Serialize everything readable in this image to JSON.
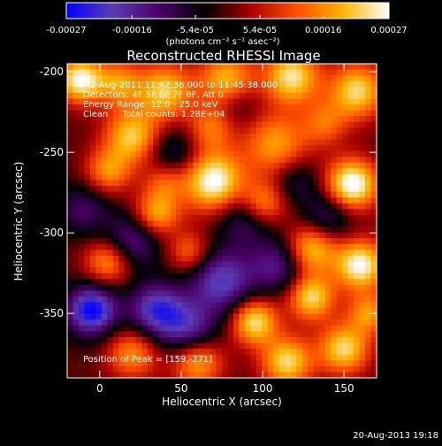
{
  "chart_data": {
    "type": "heatmap",
    "title": "Reconstructed RHESSI Image",
    "xlabel": "Heliocentric X (arcsec)",
    "ylabel": "Heliocentric Y (arcsec)",
    "xlim": [
      -20,
      170
    ],
    "ylim": [
      -390,
      -195
    ],
    "xticks": [
      0,
      50,
      100,
      150
    ],
    "yticks": [
      -200,
      -250,
      -300,
      -350
    ],
    "colorbar": {
      "min": -0.00027,
      "max": 0.00027,
      "tick_values": [
        -0.00027,
        -0.00016,
        -5.4e-05,
        5.4e-05,
        0.00016,
        0.00027
      ],
      "tick_labels": [
        "-0.00027",
        "-0.00016",
        "-5.4e-05",
        "5.4e-05",
        "0.00016",
        "0.00027"
      ],
      "unit_label": "(photons cm⁻² s⁻¹ asec⁻²)",
      "colors": [
        "#0000ff",
        "#5a3cb4",
        "#4b0069",
        "#000000",
        "#aa0000",
        "#ff5000",
        "#ffb400",
        "#ffffff"
      ]
    },
    "annotations": {
      "time": "2-Aug-2011 11:42:36.000 to 11:45:38.000",
      "detectors": "Detectors: 4F 5F 6F 7F 8F, Att 0",
      "energy": "Energy Range: 12.0 - 25.0 keV",
      "clean": "Clean     Total counts: 1.28E+04",
      "peak": "Position of Peak = [159,-271]"
    },
    "peak": [
      159,
      -271
    ],
    "blobs": [
      {
        "x": -12,
        "y": -205,
        "v": 1.0,
        "s": 10
      },
      {
        "x": 12,
        "y": -207,
        "v": 0.6,
        "s": 10
      },
      {
        "x": 40,
        "y": -212,
        "v": 0.8,
        "s": 12
      },
      {
        "x": 78,
        "y": -205,
        "v": 0.75,
        "s": 12
      },
      {
        "x": 118,
        "y": -203,
        "v": 0.9,
        "s": 12
      },
      {
        "x": 158,
        "y": -212,
        "v": 0.85,
        "s": 12
      },
      {
        "x": 20,
        "y": -240,
        "v": 0.8,
        "s": 12
      },
      {
        "x": 68,
        "y": -235,
        "v": 0.5,
        "s": 10
      },
      {
        "x": 108,
        "y": -245,
        "v": 0.65,
        "s": 14
      },
      {
        "x": 138,
        "y": -232,
        "v": 0.45,
        "s": 10
      },
      {
        "x": 70,
        "y": -268,
        "v": 1.05,
        "s": 13
      },
      {
        "x": 155,
        "y": -270,
        "v": 1.1,
        "s": 11
      },
      {
        "x": 5,
        "y": -262,
        "v": 0.6,
        "s": 10
      },
      {
        "x": 40,
        "y": -268,
        "v": 0.4,
        "s": 9
      },
      {
        "x": 35,
        "y": -288,
        "v": 0.7,
        "s": 10
      },
      {
        "x": 100,
        "y": -282,
        "v": 0.7,
        "s": 10
      },
      {
        "x": 5,
        "y": -318,
        "v": 0.65,
        "s": 10
      },
      {
        "x": 55,
        "y": -312,
        "v": 0.5,
        "s": 9
      },
      {
        "x": 130,
        "y": -310,
        "v": 0.8,
        "s": 11
      },
      {
        "x": 160,
        "y": -320,
        "v": 1.0,
        "s": 11
      },
      {
        "x": 130,
        "y": -340,
        "v": 0.85,
        "s": 10
      },
      {
        "x": 95,
        "y": -355,
        "v": 0.9,
        "s": 10
      },
      {
        "x": 20,
        "y": -375,
        "v": 0.6,
        "s": 11
      },
      {
        "x": 60,
        "y": -380,
        "v": 0.7,
        "s": 11
      },
      {
        "x": 115,
        "y": -380,
        "v": 0.85,
        "s": 11
      },
      {
        "x": 150,
        "y": -372,
        "v": 0.85,
        "s": 11
      },
      {
        "x": 165,
        "y": -350,
        "v": 0.6,
        "s": 9
      },
      {
        "x": -5,
        "y": -348,
        "v": -1.0,
        "s": 11
      },
      {
        "x": 35,
        "y": -348,
        "v": -0.8,
        "s": 12
      },
      {
        "x": 75,
        "y": -330,
        "v": -0.75,
        "s": 14
      },
      {
        "x": 55,
        "y": -360,
        "v": -0.6,
        "s": 12
      },
      {
        "x": 20,
        "y": -305,
        "v": -0.55,
        "s": 12
      },
      {
        "x": 110,
        "y": -320,
        "v": -0.55,
        "s": 12
      },
      {
        "x": 90,
        "y": -290,
        "v": -0.5,
        "s": 12
      },
      {
        "x": 140,
        "y": -290,
        "v": -0.45,
        "s": 11
      },
      {
        "x": 45,
        "y": -250,
        "v": -0.4,
        "s": 11
      },
      {
        "x": 120,
        "y": -268,
        "v": -0.35,
        "s": 10
      },
      {
        "x": -10,
        "y": -285,
        "v": -0.4,
        "s": 12
      },
      {
        "x": 85,
        "y": -220,
        "v": -0.25,
        "s": 10
      }
    ]
  },
  "footer": {
    "date": "20-Aug-2013 19:18"
  }
}
